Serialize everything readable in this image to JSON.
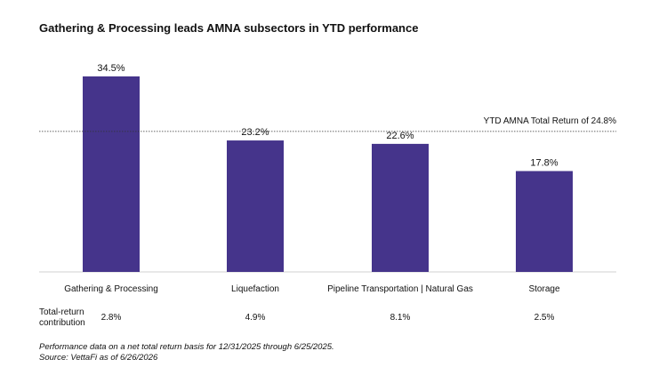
{
  "title": "Gathering & Processing leads AMNA subsectors in YTD performance",
  "colors": {
    "bar": "#45348b",
    "baseline": "#d0d0d0",
    "reference_line": "#333333"
  },
  "chart_data": {
    "type": "bar",
    "categories": [
      "Gathering & Processing",
      "Liquefaction",
      "Pipeline Transportation | Natural Gas",
      "Storage"
    ],
    "values": [
      34.5,
      23.2,
      22.6,
      17.8
    ],
    "value_labels": [
      "34.5%",
      "23.2%",
      "22.6%",
      "17.8%"
    ],
    "ylim": [
      0,
      34.5
    ],
    "reference_line": {
      "value": 24.8,
      "label": "YTD AMNA Total Return of 24.8%",
      "style": "dotted"
    },
    "contribution": {
      "label": "Total-return contribution",
      "values": [
        "2.8%",
        "4.9%",
        "8.1%",
        "2.5%"
      ]
    },
    "grid": false,
    "legend": "none"
  },
  "footnotes": [
    "Performance data on a net total return basis for 12/31/2025 through 6/25/2025.",
    "Source: VettaFi as of 6/26/2026"
  ]
}
